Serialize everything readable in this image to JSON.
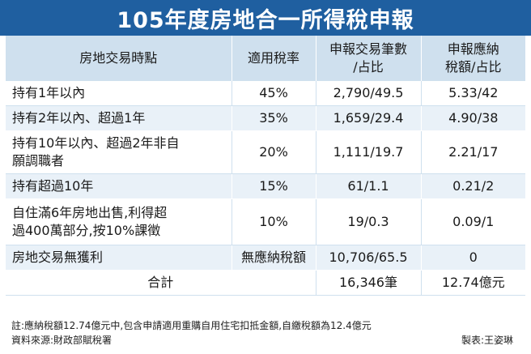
{
  "title": "105年度房地合一所得稅申報",
  "headers": {
    "col1": "房地交易時點",
    "col2": "適用稅率",
    "col3_line1": "申報交易筆數",
    "col3_line2": "/占比",
    "col4_line1": "申報應納",
    "col4_line2": "稅額/占比"
  },
  "rows": [
    {
      "item_line1": "持有1年以內",
      "item_line2": "",
      "rate": "45%",
      "count": "2,790/49.5",
      "tax": "5.33/42"
    },
    {
      "item_line1": "持有2年以內、超過1年",
      "item_line2": "",
      "rate": "35%",
      "count": "1,659/29.4",
      "tax": "4.90/38"
    },
    {
      "item_line1": "持有10年以內、超過2年非自",
      "item_line2": "願調職者",
      "rate": "20%",
      "count": "1,111/19.7",
      "tax": "2.21/17"
    },
    {
      "item_line1": "持有超過10年",
      "item_line2": "",
      "rate": "15%",
      "count": "61/1.1",
      "tax": "0.21/2"
    },
    {
      "item_line1": "自住滿6年房地出售,利得超",
      "item_line2": "過400萬部分,按10%課徵",
      "rate": "10%",
      "count": "19/0.3",
      "tax": "0.09/1"
    },
    {
      "item_line1": "房地交易無獲利",
      "item_line2": "",
      "rate": "無應納稅額",
      "count": "10,706/65.5",
      "tax": "0"
    }
  ],
  "total": {
    "label": "合計",
    "count": "16,346筆",
    "tax": "12.74億元"
  },
  "notes": {
    "note": "註:應納稅額12.74億元中,包含申請適用重購自用住宅扣抵金額,自繳稅額為12.4億元",
    "source": "資料來源:財政部賦稅署",
    "credit": "製表:王姿琳"
  }
}
